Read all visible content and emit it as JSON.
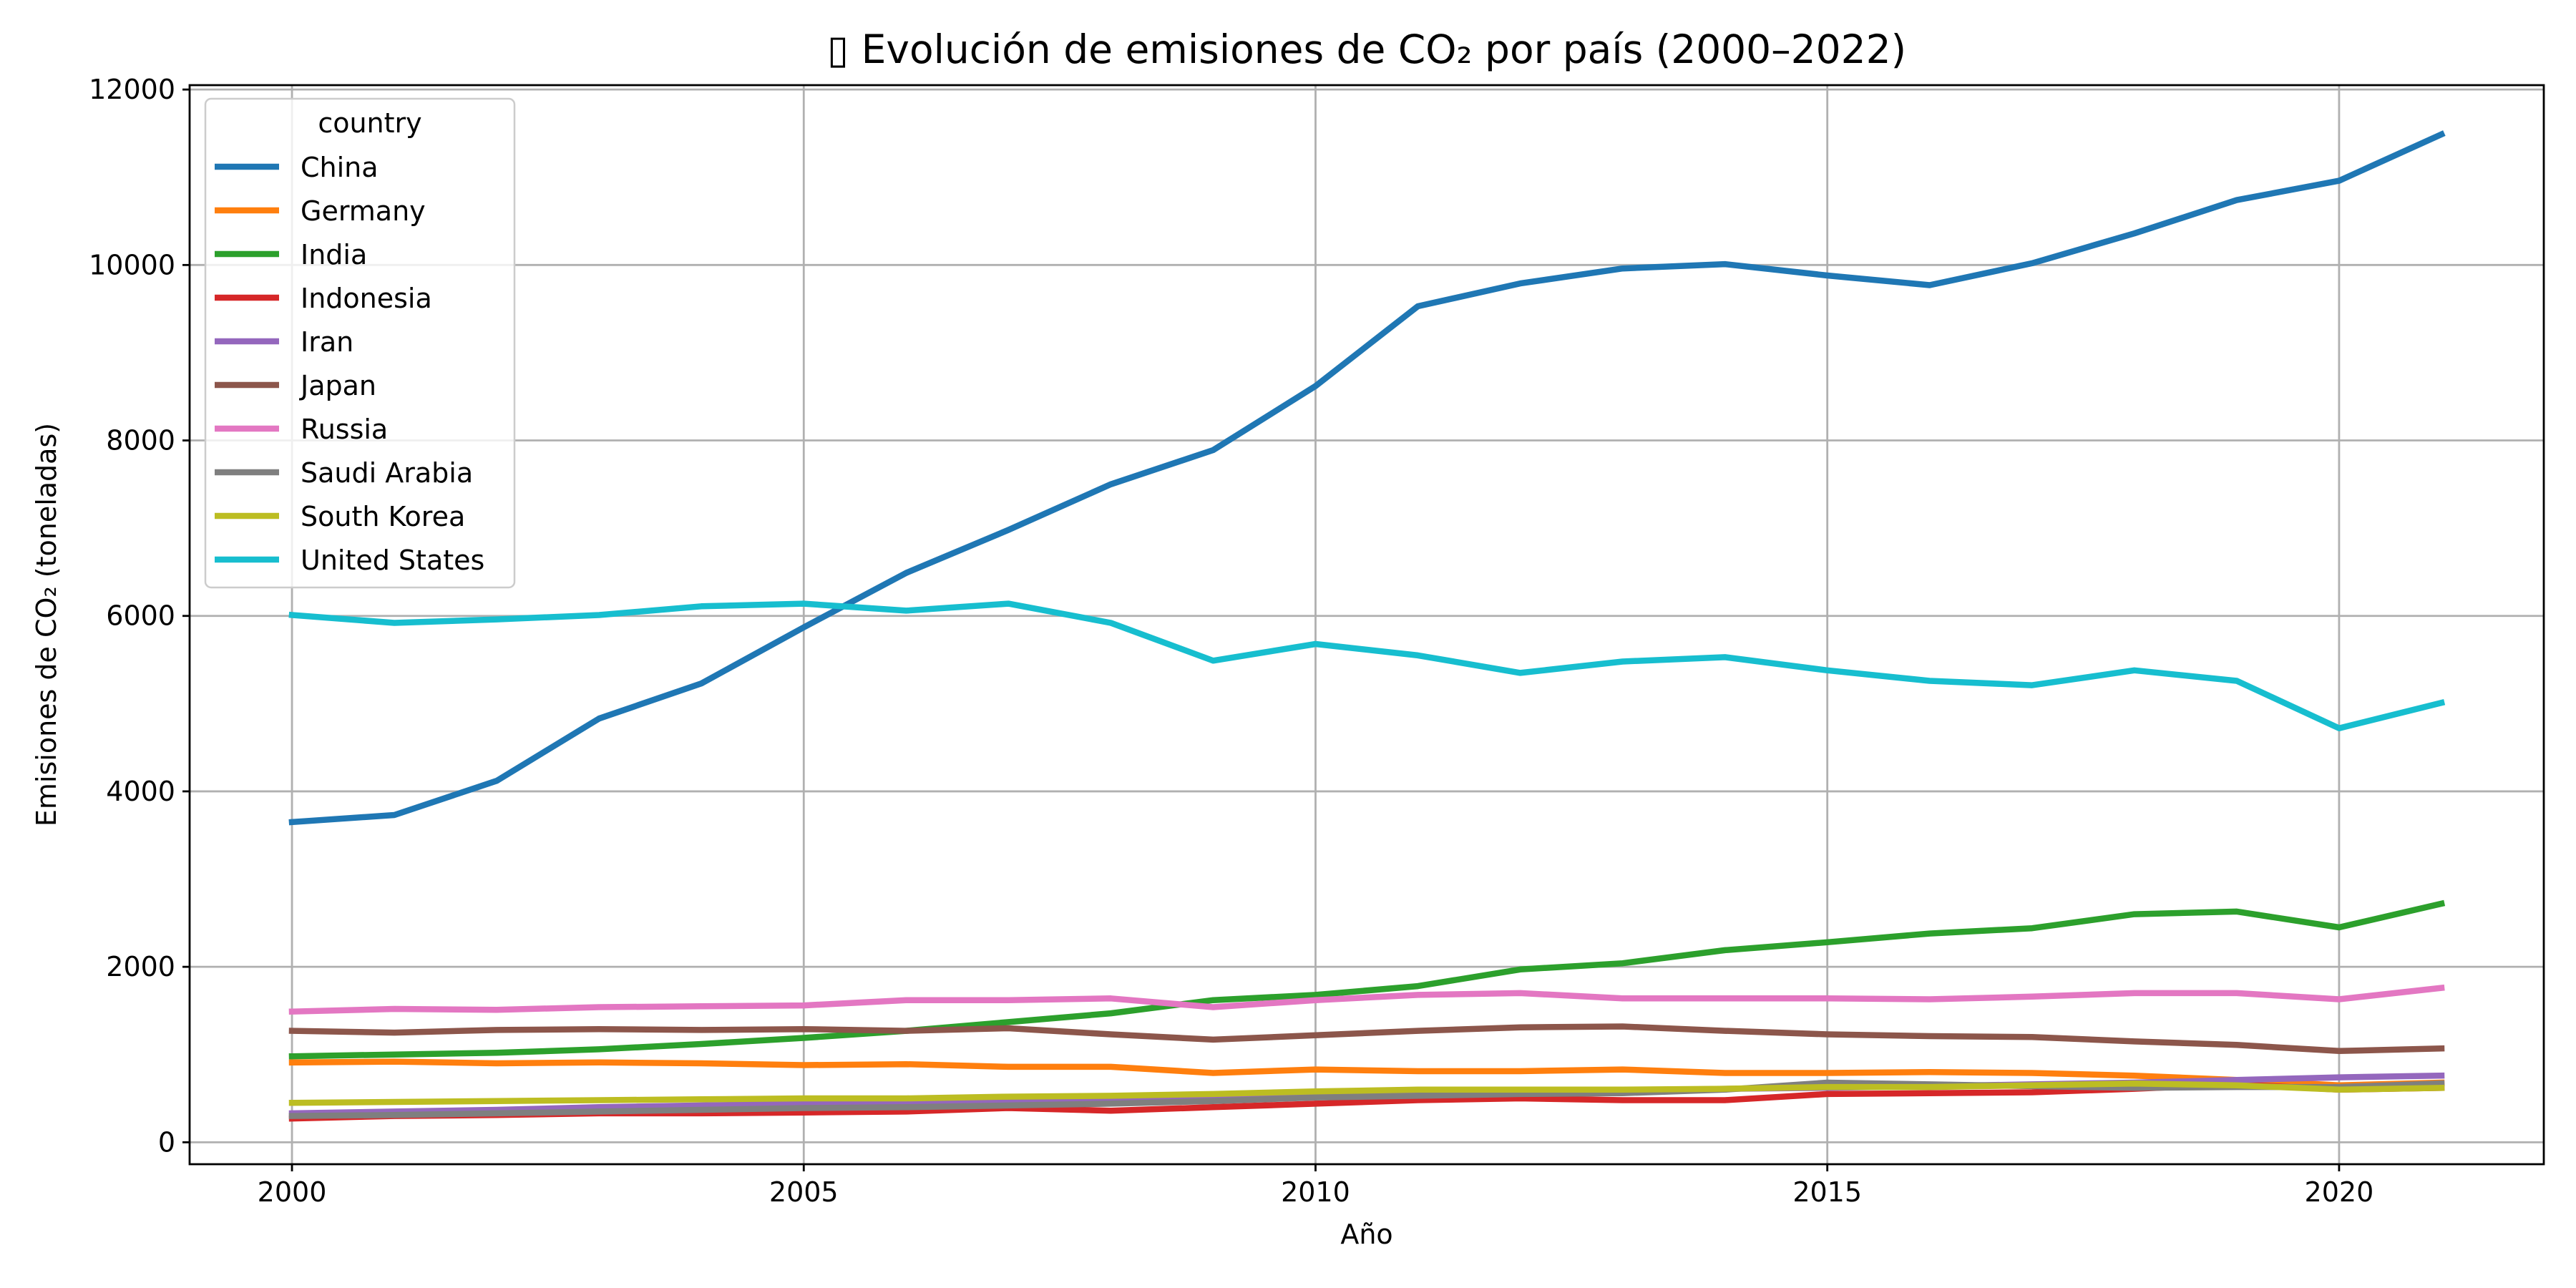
{
  "chart_data": {
    "type": "line",
    "title": "▯ Evolución de emisiones de CO₂ por país (2000–2022)",
    "xlabel": "Año",
    "ylabel": "Emisiones de CO₂ (toneladas)",
    "xlim": [
      1999,
      2022
    ],
    "ylim": [
      -250,
      12050
    ],
    "xticks": [
      2000,
      2005,
      2010,
      2015,
      2020
    ],
    "yticks": [
      0,
      2000,
      4000,
      6000,
      8000,
      10000,
      12000
    ],
    "grid": true,
    "legend_title": "country",
    "legend_position": "top-left",
    "x": [
      2000,
      2001,
      2002,
      2003,
      2004,
      2005,
      2006,
      2007,
      2008,
      2009,
      2010,
      2011,
      2012,
      2013,
      2014,
      2015,
      2016,
      2017,
      2018,
      2019,
      2020,
      2021
    ],
    "series": [
      {
        "name": "China",
        "color": "#1f77b4",
        "values": [
          3650,
          3730,
          4120,
          4830,
          5230,
          5870,
          6490,
          6980,
          7500,
          7890,
          8620,
          9530,
          9790,
          9960,
          10010,
          9880,
          9770,
          10020,
          10360,
          10740,
          10960,
          11490
        ]
      },
      {
        "name": "Germany",
        "color": "#ff7f0e",
        "values": [
          910,
          920,
          900,
          910,
          900,
          880,
          890,
          860,
          860,
          790,
          830,
          810,
          810,
          830,
          790,
          790,
          800,
          790,
          760,
          710,
          650,
          680
        ]
      },
      {
        "name": "India",
        "color": "#2ca02c",
        "values": [
          980,
          1000,
          1020,
          1060,
          1120,
          1190,
          1270,
          1370,
          1470,
          1620,
          1680,
          1780,
          1970,
          2040,
          2190,
          2280,
          2380,
          2440,
          2600,
          2630,
          2450,
          2720
        ]
      },
      {
        "name": "Indonesia",
        "color": "#d62728",
        "values": [
          270,
          300,
          310,
          330,
          330,
          340,
          350,
          390,
          360,
          400,
          440,
          480,
          500,
          480,
          480,
          550,
          560,
          570,
          610,
          660,
          600,
          620
        ]
      },
      {
        "name": "Iran",
        "color": "#9467bd",
        "values": [
          330,
          350,
          370,
          400,
          420,
          440,
          460,
          480,
          500,
          520,
          540,
          560,
          580,
          590,
          610,
          620,
          640,
          660,
          680,
          710,
          740,
          760
        ]
      },
      {
        "name": "Japan",
        "color": "#8c564b",
        "values": [
          1270,
          1250,
          1280,
          1290,
          1280,
          1290,
          1270,
          1300,
          1230,
          1170,
          1220,
          1270,
          1310,
          1320,
          1270,
          1230,
          1210,
          1200,
          1150,
          1110,
          1040,
          1070
        ]
      },
      {
        "name": "Russia",
        "color": "#e377c2",
        "values": [
          1490,
          1520,
          1510,
          1540,
          1550,
          1560,
          1620,
          1620,
          1640,
          1540,
          1620,
          1680,
          1700,
          1640,
          1640,
          1640,
          1630,
          1660,
          1700,
          1700,
          1630,
          1760
        ]
      },
      {
        "name": "Saudi Arabia",
        "color": "#7f7f7f",
        "values": [
          300,
          310,
          330,
          350,
          370,
          390,
          400,
          420,
          440,
          470,
          510,
          530,
          550,
          560,
          600,
          680,
          660,
          640,
          620,
          630,
          630,
          670
        ]
      },
      {
        "name": "South Korea",
        "color": "#bcbd22",
        "values": [
          450,
          460,
          470,
          480,
          490,
          500,
          500,
          520,
          530,
          550,
          580,
          600,
          600,
          600,
          610,
          630,
          630,
          650,
          670,
          650,
          600,
          620
        ]
      },
      {
        "name": "United States",
        "color": "#17becf",
        "values": [
          6010,
          5920,
          5960,
          6010,
          6110,
          6140,
          6060,
          6140,
          5920,
          5490,
          5680,
          5550,
          5350,
          5480,
          5530,
          5380,
          5260,
          5210,
          5380,
          5260,
          4720,
          5010
        ]
      }
    ]
  }
}
